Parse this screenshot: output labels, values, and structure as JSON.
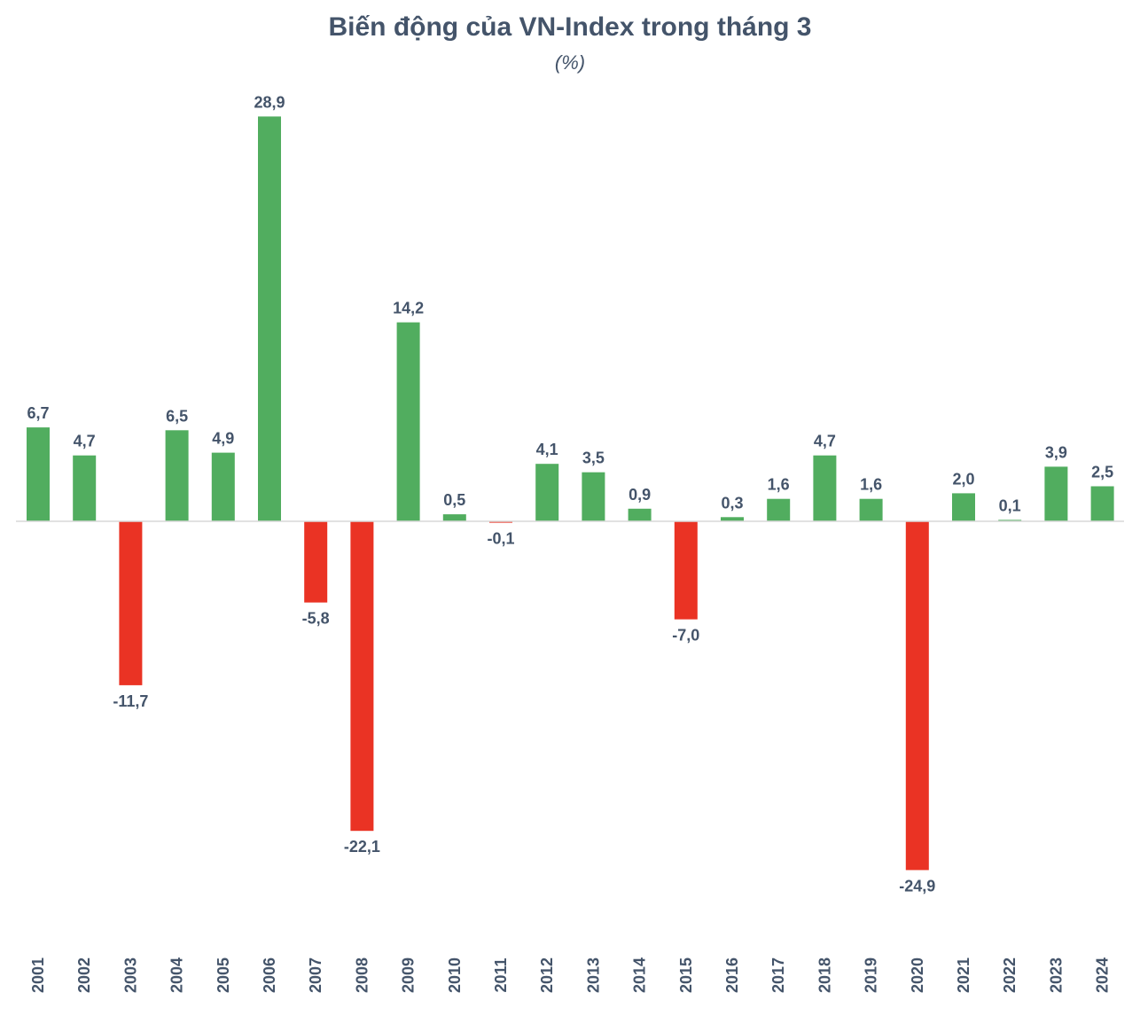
{
  "colors": {
    "positive": "#51ad5f",
    "negative": "#ea3324",
    "text": "#44546a",
    "axis": "#d9d9d9"
  },
  "chart_data": {
    "type": "bar",
    "title": "Biến động của VN-Index trong tháng 3",
    "subtitle": "(%)",
    "xlabel": "",
    "ylabel": "",
    "ylim": [
      -30,
      30
    ],
    "grid": false,
    "legend": "none",
    "categories": [
      "2001",
      "2002",
      "2003",
      "2004",
      "2005",
      "2006",
      "2007",
      "2008",
      "2009",
      "2010",
      "2011",
      "2012",
      "2013",
      "2014",
      "2015",
      "2016",
      "2017",
      "2018",
      "2019",
      "2020",
      "2021",
      "2022",
      "2023",
      "2024"
    ],
    "values": [
      6.7,
      4.7,
      -11.7,
      6.5,
      4.9,
      28.9,
      -5.8,
      -22.1,
      14.2,
      0.5,
      -0.1,
      4.1,
      3.5,
      0.9,
      -7.0,
      0.3,
      1.6,
      4.7,
      1.6,
      -24.9,
      2.0,
      0.1,
      3.9,
      2.5
    ],
    "value_labels": [
      "6,7",
      "4,7",
      "-11,7",
      "6,5",
      "4,9",
      "28,9",
      "-5,8",
      "-22,1",
      "14,2",
      "0,5",
      "-0,1",
      "4,1",
      "3,5",
      "0,9",
      "-7,0",
      "0,3",
      "1,6",
      "4,7",
      "1,6",
      "-24,9",
      "2,0",
      "0,1",
      "3,9",
      "2,5"
    ]
  }
}
